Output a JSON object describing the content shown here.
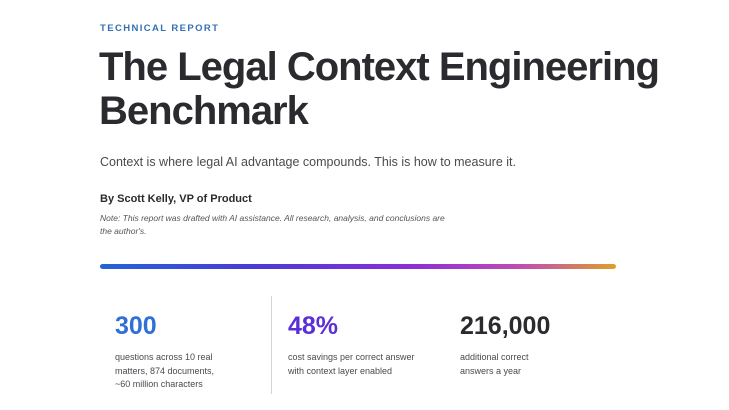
{
  "report": {
    "eyebrow": "TECHNICAL REPORT",
    "title": "The Legal Context Engineering Benchmark",
    "subtitle": "Context is where legal AI advantage compounds. This is how to measure it.",
    "byline": "By Scott Kelly, VP of Product",
    "note": "Note: This report was drafted with AI assistance. All research, analysis, and conclusions are the author's."
  },
  "colors": {
    "accent_blue": "#2f6fd6",
    "accent_purple": "#5b2fd6",
    "text_dark": "#2b2b2f",
    "eyebrow": "#3470b5"
  },
  "stats": [
    {
      "value": "300",
      "label": "questions across 10 real\nmatters, 874 documents,\n~60 million characters",
      "color": "#2f6fd6"
    },
    {
      "value": "48%",
      "label": "cost savings per correct answer\nwith context layer enabled",
      "color": "#5b2fd6"
    },
    {
      "value": "216,000",
      "label": "additional correct\nanswers a year",
      "color": "#2b2b2f"
    }
  ]
}
